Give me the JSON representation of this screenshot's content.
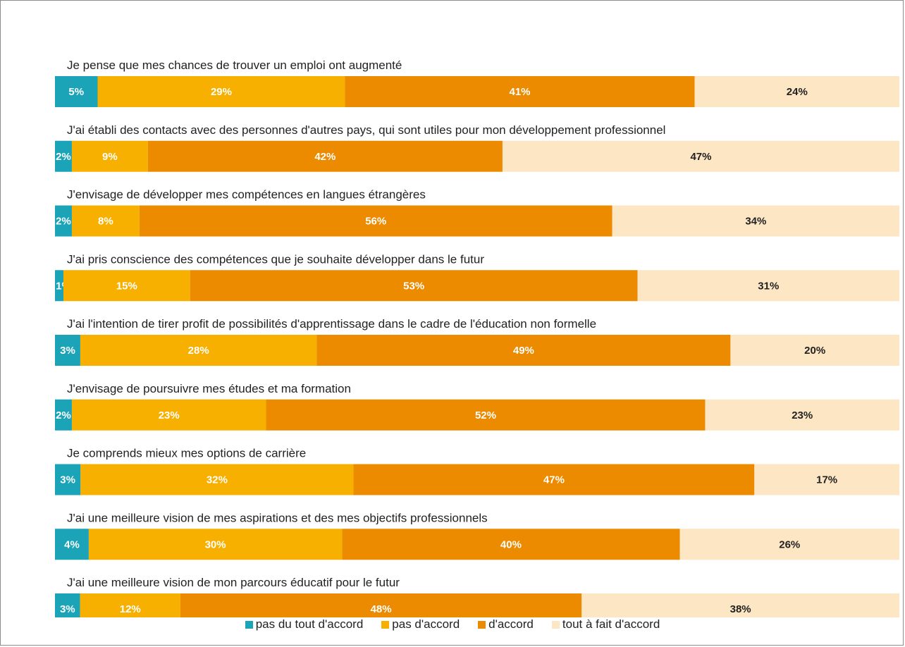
{
  "chart_data": {
    "type": "bar",
    "orientation": "horizontal",
    "stacked": true,
    "xlim": [
      0,
      100
    ],
    "grid": false,
    "legend_position": "bottom-center",
    "categories": [
      "Je pense que mes chances de trouver un emploi ont augmenté",
      "J'ai établi des contacts avec des personnes d'autres pays, qui sont utiles pour mon développement professionnel",
      "J'envisage de développer mes compétences en langues étrangères",
      "J'ai pris conscience des compétences que je souhaite développer dans le futur",
      "J'ai l'intention de tirer profit de possibilités d'apprentissage dans le cadre de l'éducation non formelle",
      "J'envisage de poursuivre mes études et ma formation",
      "Je comprends mieux mes options de carrière",
      "J'ai une meilleure vision de mes aspirations et des mes objectifs professionnels",
      "J'ai une meilleure vision de mon parcours éducatif pour le futur"
    ],
    "series": [
      {
        "name": "pas du tout d'accord",
        "color": "#1ba3b8",
        "label_color": "#ffffff",
        "values": [
          5,
          2,
          2,
          1,
          3,
          2,
          3,
          4,
          3
        ]
      },
      {
        "name": "pas d'accord",
        "color": "#f8b000",
        "label_color": "#ffffff",
        "values": [
          29,
          9,
          8,
          15,
          28,
          23,
          32,
          30,
          12
        ]
      },
      {
        "name": "d'accord",
        "color": "#ec8b00",
        "label_color": "#ffffff",
        "values": [
          41,
          42,
          56,
          53,
          49,
          52,
          47,
          40,
          48
        ]
      },
      {
        "name": "tout à fait d'accord",
        "color": "#fde6c3",
        "label_color": "#222222",
        "values": [
          24,
          47,
          34,
          31,
          20,
          23,
          17,
          26,
          38
        ]
      }
    ]
  }
}
